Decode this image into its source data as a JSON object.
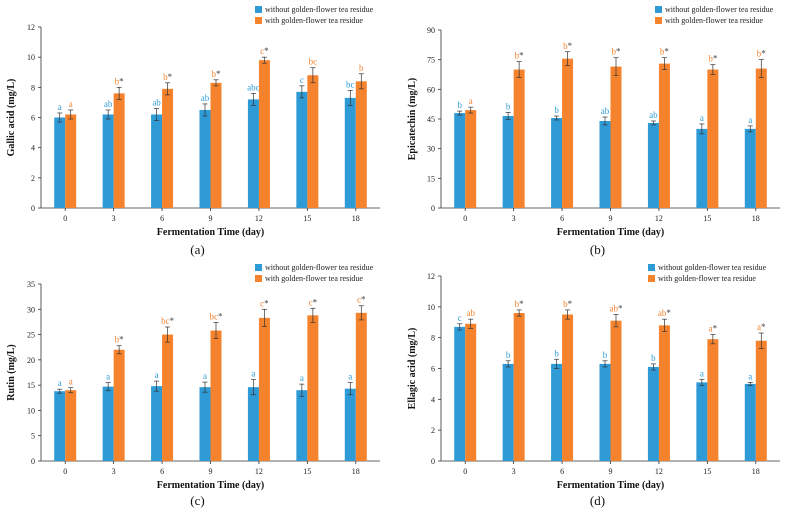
{
  "colors": {
    "series1": "#2e9bd6",
    "series2": "#f5822d",
    "axis": "#333333"
  },
  "chart_data": [
    {
      "type": "bar",
      "panel_label": "(a)",
      "xlabel": "Fermentation Time (day)",
      "ylabel": "Gallic acid (mg/L)",
      "categories": [
        "0",
        "3",
        "6",
        "9",
        "12",
        "15",
        "18"
      ],
      "ylim": [
        0,
        12
      ],
      "yticks": [
        "0",
        "2",
        "4",
        "6",
        "8",
        "10",
        "12"
      ],
      "legend_position": "top-center",
      "series": [
        {
          "name": "without golden-flower tea residue",
          "values": [
            6.0,
            6.2,
            6.2,
            6.5,
            7.2,
            7.7,
            7.3
          ],
          "errors": [
            0.3,
            0.3,
            0.4,
            0.4,
            0.4,
            0.4,
            0.5
          ],
          "letters": [
            "a",
            "ab",
            "ab",
            "ab",
            "abc",
            "c",
            "bc"
          ],
          "stars": [
            false,
            false,
            false,
            false,
            false,
            false,
            false
          ]
        },
        {
          "name": "with golden-flower tea residue",
          "values": [
            6.2,
            7.6,
            7.9,
            8.3,
            9.8,
            8.8,
            8.4
          ],
          "errors": [
            0.3,
            0.4,
            0.4,
            0.2,
            0.2,
            0.5,
            0.5
          ],
          "letters": [
            "a",
            "b",
            "b",
            "b",
            "c",
            "bc",
            "b"
          ],
          "stars": [
            false,
            true,
            true,
            true,
            true,
            false,
            false
          ]
        }
      ]
    },
    {
      "type": "bar",
      "panel_label": "(b)",
      "xlabel": "Fermentation Time (day)",
      "ylabel": "Epicatechin (mg/L)",
      "categories": [
        "0",
        "3",
        "6",
        "9",
        "12",
        "15",
        "18"
      ],
      "ylim": [
        0,
        90
      ],
      "yticks": [
        "0",
        "15",
        "30",
        "45",
        "60",
        "75",
        "90"
      ],
      "legend_position": "top-center",
      "series": [
        {
          "name": "without golden-flower tea residue",
          "values": [
            48,
            46.5,
            45.5,
            44,
            43,
            40,
            40
          ],
          "errors": [
            1,
            1.8,
            1,
            2,
            1,
            2.5,
            1.5
          ],
          "letters": [
            "b",
            "b",
            "b",
            "ab",
            "ab",
            "a",
            "a"
          ],
          "stars": [
            false,
            false,
            false,
            false,
            false,
            false,
            false
          ]
        },
        {
          "name": "with golden-flower tea residue",
          "values": [
            49.5,
            70,
            75.5,
            71.5,
            73,
            70,
            70.5
          ],
          "errors": [
            1.5,
            4,
            3.5,
            4.5,
            3,
            2.5,
            4.5
          ],
          "letters": [
            "a",
            "b",
            "b",
            "b",
            "b",
            "b",
            "b"
          ],
          "stars": [
            false,
            true,
            true,
            true,
            true,
            true,
            true
          ]
        }
      ]
    },
    {
      "type": "bar",
      "panel_label": "(c)",
      "xlabel": "Fermentation Time (day)",
      "ylabel": "Rutin (mg/L)",
      "categories": [
        "0",
        "3",
        "6",
        "9",
        "12",
        "15",
        "18"
      ],
      "ylim": [
        0,
        35
      ],
      "yticks": [
        "0",
        "5",
        "10",
        "15",
        "20",
        "25",
        "30",
        "35"
      ],
      "legend_position": "top-center",
      "series": [
        {
          "name": "without golden-flower tea residue",
          "values": [
            13.8,
            14.7,
            14.8,
            14.6,
            14.6,
            14.0,
            14.3
          ],
          "errors": [
            0.4,
            0.8,
            1.0,
            1.0,
            1.5,
            1.2,
            1.2
          ],
          "letters": [
            "a",
            "a",
            "a",
            "a",
            "a",
            "a",
            "a"
          ],
          "stars": [
            false,
            false,
            false,
            false,
            false,
            false,
            false
          ]
        },
        {
          "name": "with golden-flower tea residue",
          "values": [
            14.0,
            22.0,
            25.0,
            25.8,
            28.3,
            28.8,
            29.3
          ],
          "errors": [
            0.5,
            0.8,
            1.5,
            1.6,
            1.7,
            1.4,
            1.4
          ],
          "letters": [
            "a",
            "b",
            "bc",
            "bc",
            "c",
            "c",
            "c"
          ],
          "stars": [
            false,
            true,
            true,
            true,
            true,
            true,
            true
          ]
        }
      ]
    },
    {
      "type": "bar",
      "panel_label": "(d)",
      "xlabel": "Fermentation Time (day)",
      "ylabel": "Ellagic acid (mg/L)",
      "categories": [
        "0",
        "3",
        "6",
        "9",
        "12",
        "15",
        "18"
      ],
      "ylim": [
        0,
        12
      ],
      "yticks": [
        "0",
        "2",
        "4",
        "6",
        "8",
        "10",
        "12"
      ],
      "legend_position": "top-center",
      "series": [
        {
          "name": "without golden-flower tea residue",
          "values": [
            8.7,
            6.3,
            6.3,
            6.3,
            6.1,
            5.1,
            5.0
          ],
          "errors": [
            0.2,
            0.2,
            0.3,
            0.2,
            0.2,
            0.2,
            0.1
          ],
          "letters": [
            "c",
            "b",
            "b",
            "b",
            "b",
            "a",
            "a"
          ],
          "stars": [
            false,
            false,
            false,
            false,
            false,
            false,
            false
          ]
        },
        {
          "name": "with golden-flower tea residue",
          "values": [
            8.9,
            9.6,
            9.5,
            9.1,
            8.8,
            7.9,
            7.8
          ],
          "errors": [
            0.3,
            0.2,
            0.3,
            0.4,
            0.4,
            0.3,
            0.5
          ],
          "letters": [
            "ab",
            "b",
            "b",
            "ab",
            "ab",
            "a",
            "a"
          ],
          "stars": [
            false,
            true,
            true,
            true,
            true,
            true,
            true
          ]
        }
      ]
    }
  ]
}
